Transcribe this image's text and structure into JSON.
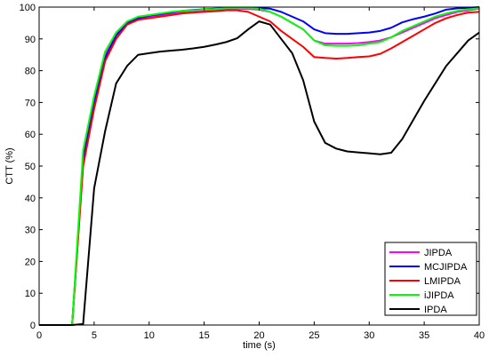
{
  "chart_data": {
    "type": "line",
    "title": "",
    "xlabel": "time (s)",
    "ylabel": "CTT (%)",
    "xlim": [
      0,
      40
    ],
    "ylim": [
      0,
      100
    ],
    "xticks": [
      0,
      5,
      10,
      15,
      20,
      25,
      30,
      35,
      40
    ],
    "yticks": [
      0,
      10,
      20,
      30,
      40,
      50,
      60,
      70,
      80,
      90,
      100
    ],
    "grid": false,
    "legend_position": "bottom-right",
    "x": [
      0,
      1,
      2,
      3,
      4,
      5,
      6,
      7,
      8,
      9,
      10,
      11,
      12,
      13,
      14,
      15,
      16,
      17,
      18,
      19,
      20,
      21,
      22,
      23,
      24,
      25,
      26,
      27,
      28,
      29,
      30,
      31,
      32,
      33,
      34,
      35,
      36,
      37,
      38,
      39,
      40
    ],
    "series": [
      {
        "name": "JIPDA",
        "color": "#ff00ff",
        "values": [
          0,
          0,
          0,
          0,
          52,
          71,
          85,
          91.5,
          95,
          96.5,
          97,
          97.5,
          98,
          98.5,
          98.8,
          99,
          99.2,
          99.4,
          99.5,
          99.4,
          99.2,
          98.5,
          97,
          95,
          93,
          89.5,
          88.5,
          88.5,
          88.5,
          88.7,
          89,
          89.5,
          90.5,
          92,
          93.5,
          95,
          96.5,
          97.5,
          98.5,
          99,
          99.5
        ]
      },
      {
        "name": "MCJIPDA",
        "color": "#0000ff",
        "values": [
          0,
          0,
          0,
          0,
          52,
          70,
          84,
          91,
          95,
          96.5,
          97.3,
          97.8,
          98.3,
          98.8,
          99.1,
          99.3,
          99.5,
          99.6,
          99.7,
          99.7,
          99.7,
          99.5,
          98.5,
          97,
          95.5,
          93,
          91.8,
          91.6,
          91.6,
          91.8,
          92,
          92.5,
          93.5,
          95.2,
          96.2,
          97,
          98,
          99.2,
          99.6,
          99.8,
          100
        ]
      },
      {
        "name": "LMIPDA",
        "color": "#ff0000",
        "values": [
          0,
          0,
          0,
          0,
          50,
          68,
          83,
          90,
          94.5,
          96,
          96.5,
          97,
          97.5,
          98,
          98.3,
          98.5,
          98.7,
          99,
          99,
          98.5,
          97,
          95.5,
          92.5,
          90,
          87.5,
          84.3,
          84,
          83.8,
          84,
          84.3,
          84.5,
          85.3,
          87,
          89,
          91,
          93,
          95,
          96.5,
          97.5,
          98.3,
          98.5
        ]
      },
      {
        "name": "iJIPDA",
        "color": "#00ff00",
        "values": [
          0,
          0,
          0,
          0,
          55,
          72,
          86,
          92,
          95.5,
          97,
          97.5,
          98,
          98.5,
          98.8,
          99,
          99.2,
          99.4,
          99.6,
          99.7,
          99.6,
          99.5,
          98.5,
          97,
          95,
          93,
          89.5,
          88,
          87.8,
          87.8,
          88,
          88.5,
          89,
          90.5,
          92.5,
          94,
          95.5,
          97,
          98,
          98.8,
          99.3,
          99.6
        ]
      },
      {
        "name": "IPDA",
        "color": "#000000",
        "values": [
          0,
          0,
          0,
          0,
          0.3,
          43,
          61,
          76,
          81.5,
          85,
          85.5,
          86,
          86.3,
          86.6,
          87,
          87.5,
          88.2,
          89,
          90.2,
          93,
          95.5,
          94.5,
          90,
          85.5,
          77,
          64,
          57.3,
          55.5,
          54.6,
          54.3,
          54,
          53.7,
          54.2,
          58.5,
          64.5,
          70.5,
          76,
          81.5,
          85.5,
          89.5,
          92
        ]
      }
    ]
  }
}
